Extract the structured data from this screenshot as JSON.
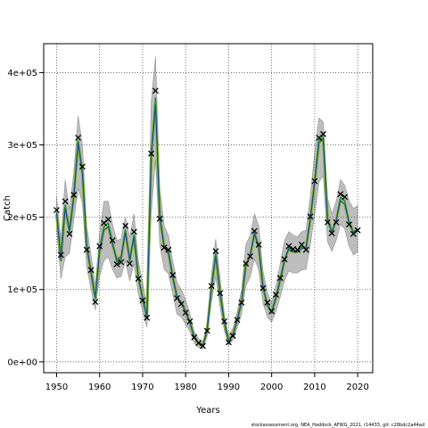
{
  "chart_data": {
    "type": "line",
    "xlabel": "Years",
    "ylabel": "Catch",
    "xlim": [
      1947,
      2023.5
    ],
    "ylim": [
      -15000,
      440000
    ],
    "x_ticks": [
      1950,
      1960,
      1970,
      1980,
      1990,
      2000,
      2010,
      2020
    ],
    "x_tick_labels": [
      "1950",
      "1960",
      "1970",
      "1980",
      "1990",
      "2000",
      "2010",
      "2020"
    ],
    "y_ticks": [
      0,
      100000,
      200000,
      300000,
      400000
    ],
    "y_tick_labels": [
      "0e+00",
      "1e+05",
      "2e+05",
      "3e+05",
      "4e+05"
    ],
    "grid": true,
    "footnote": "stockassessment.org, NEA_Haddock_AFWG_2021, r14433, git: c28bdc2a44ad",
    "colors": {
      "band": "#bdbdbd",
      "band_edge": "#8f8f8f",
      "estimate": "#1e4aa0",
      "green": "#1f8f3a",
      "olive": "#9cb540",
      "observed": "#000000",
      "grid": "#555555"
    },
    "years": [
      1950,
      1951,
      1952,
      1953,
      1954,
      1955,
      1956,
      1957,
      1958,
      1959,
      1960,
      1961,
      1962,
      1963,
      1964,
      1965,
      1966,
      1967,
      1968,
      1969,
      1970,
      1971,
      1972,
      1973,
      1974,
      1975,
      1976,
      1977,
      1978,
      1979,
      1980,
      1981,
      1982,
      1983,
      1984,
      1985,
      1986,
      1987,
      1988,
      1989,
      1990,
      1991,
      1992,
      1993,
      1994,
      1995,
      1996,
      1997,
      1998,
      1999,
      2000,
      2001,
      2002,
      2003,
      2004,
      2005,
      2006,
      2007,
      2008,
      2009,
      2010,
      2011,
      2012,
      2013,
      2014,
      2015,
      2016,
      2017,
      2018,
      2019,
      2020
    ],
    "observed": [
      210000,
      148000,
      222000,
      177000,
      231000,
      310000,
      270000,
      155000,
      127000,
      83000,
      160000,
      192000,
      197000,
      168000,
      135000,
      138000,
      188000,
      136000,
      180000,
      115000,
      85000,
      61000,
      288000,
      375000,
      198000,
      158000,
      155000,
      120000,
      88000,
      80000,
      68000,
      56000,
      34000,
      26000,
      22000,
      43000,
      105000,
      153000,
      95000,
      56000,
      27000,
      36000,
      58000,
      82000,
      136000,
      146000,
      181000,
      162000,
      102000,
      82000,
      70000,
      93000,
      116000,
      142000,
      160000,
      156000,
      155000,
      162000,
      155000,
      201000,
      250000,
      310000,
      315000,
      193000,
      178000,
      193000,
      232000,
      228000,
      190000,
      177000,
      182000
    ],
    "estimate": [
      205000,
      140000,
      212000,
      182000,
      228000,
      302000,
      260000,
      162000,
      123000,
      90000,
      152000,
      182000,
      187000,
      162000,
      142000,
      145000,
      178000,
      142000,
      172000,
      118000,
      90000,
      62000,
      282000,
      355000,
      202000,
      160000,
      150000,
      117000,
      90000,
      82000,
      70000,
      54000,
      34000,
      26000,
      23000,
      44000,
      101000,
      146000,
      96000,
      54000,
      30000,
      38000,
      58000,
      83000,
      133000,
      146000,
      177000,
      158000,
      103000,
      78000,
      68000,
      88000,
      113000,
      140000,
      156000,
      152000,
      152000,
      157000,
      158000,
      198000,
      248000,
      303000,
      308000,
      198000,
      180000,
      196000,
      223000,
      218000,
      193000,
      180000,
      183000
    ],
    "lower": [
      182000,
      115000,
      145000,
      150000,
      196000,
      240000,
      220000,
      132000,
      100000,
      72000,
      118000,
      140000,
      145000,
      128000,
      116000,
      118000,
      140000,
      112000,
      136000,
      94000,
      71000,
      48000,
      205000,
      280000,
      162000,
      128000,
      122000,
      94000,
      66000,
      62000,
      52000,
      42000,
      26000,
      20000,
      18000,
      35000,
      82000,
      118000,
      76000,
      43000,
      23000,
      30000,
      47000,
      66000,
      105000,
      117000,
      142000,
      127000,
      81000,
      62000,
      55000,
      70000,
      90000,
      112000,
      126000,
      123000,
      123000,
      127000,
      128000,
      162000,
      204000,
      248000,
      258000,
      166000,
      153000,
      168000,
      190000,
      184000,
      160000,
      148000,
      152000
    ],
    "upper": [
      228000,
      168000,
      252000,
      210000,
      262000,
      340000,
      300000,
      188000,
      148000,
      105000,
      178000,
      222000,
      222000,
      190000,
      168000,
      170000,
      200000,
      172000,
      205000,
      140000,
      110000,
      78000,
      360000,
      422000,
      240000,
      188000,
      175000,
      140000,
      110000,
      100000,
      86000,
      66000,
      42000,
      32000,
      28000,
      53000,
      120000,
      170000,
      116000,
      66000,
      37000,
      46000,
      70000,
      100000,
      162000,
      175000,
      205000,
      188000,
      125000,
      96000,
      82000,
      106000,
      136000,
      168000,
      180000,
      175000,
      173000,
      180000,
      182000,
      230000,
      290000,
      337000,
      332000,
      226000,
      205000,
      222000,
      252000,
      244000,
      223000,
      212000,
      216000
    ]
  }
}
